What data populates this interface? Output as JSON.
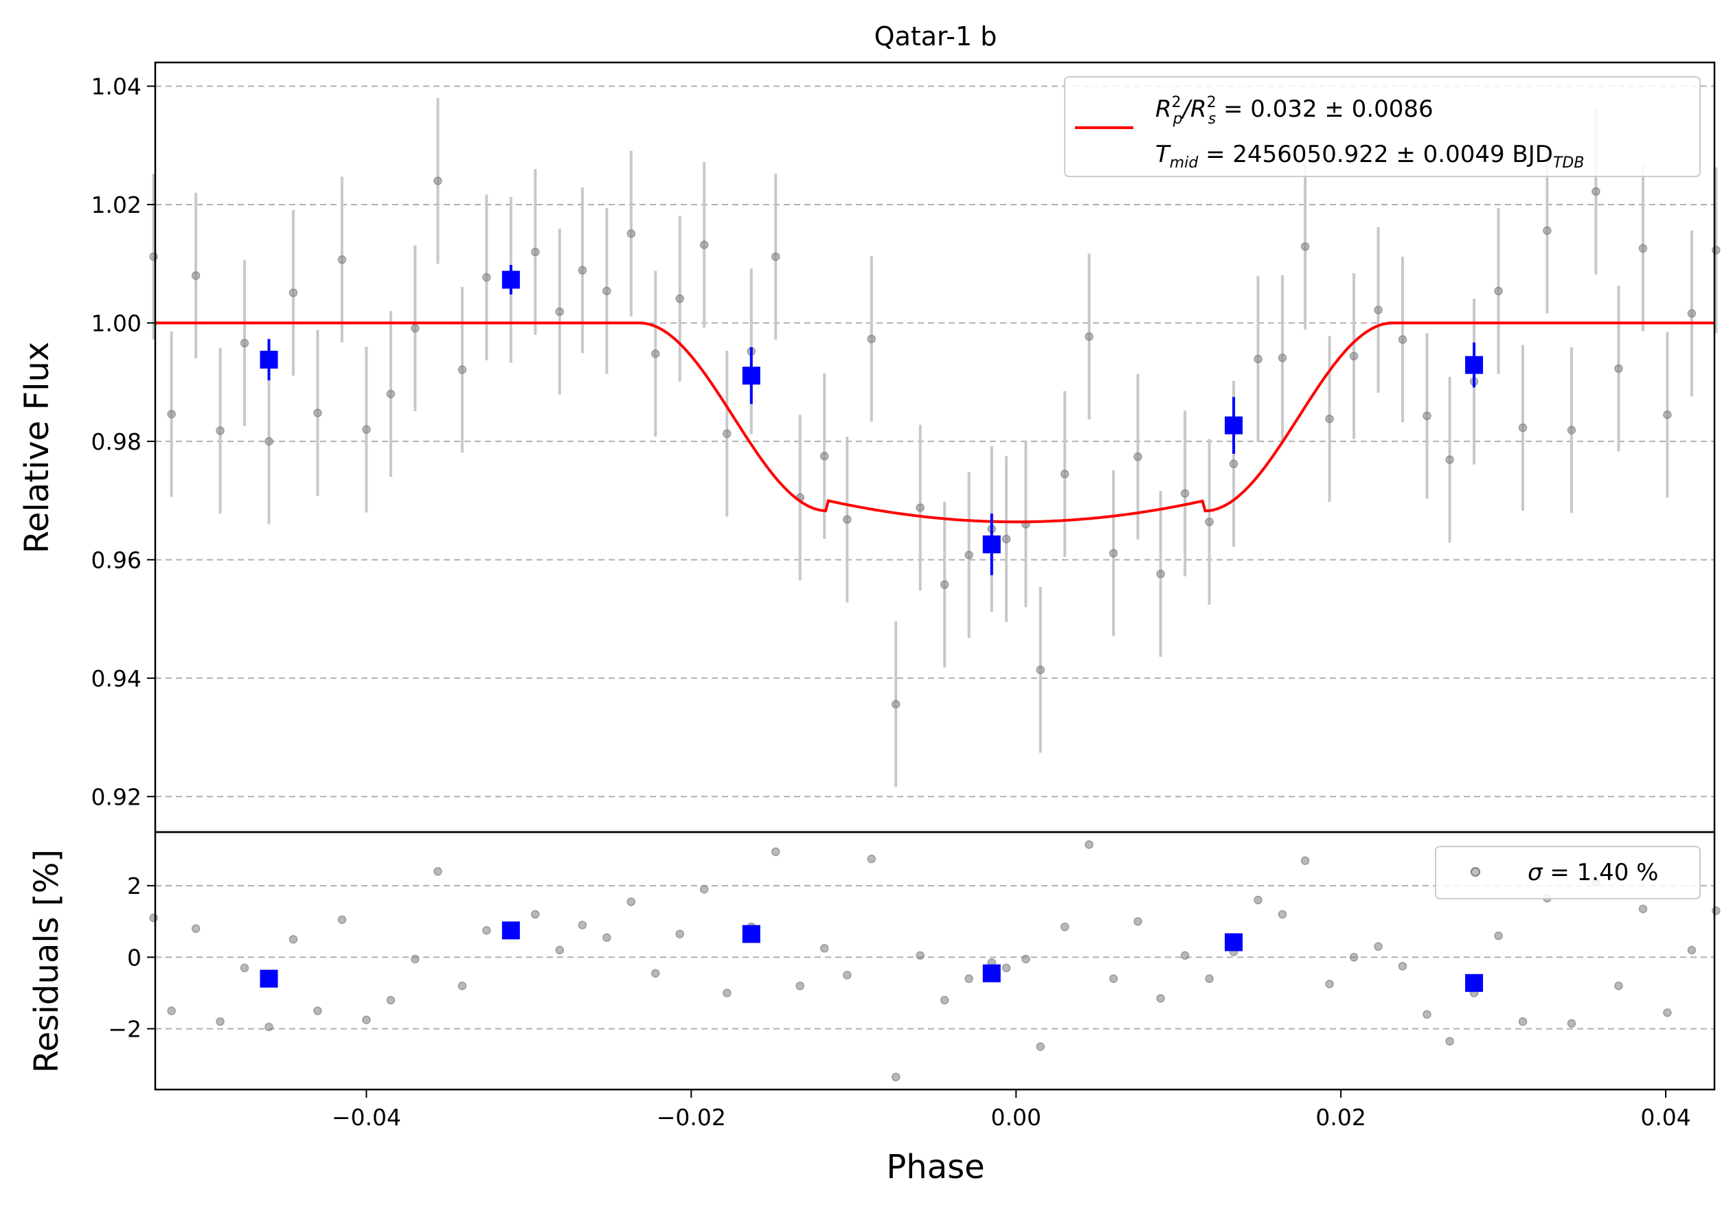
{
  "chart_data": [
    {
      "type": "scatter",
      "title": "Qatar-1 b",
      "xlabel": "",
      "ylabel": "Relative Flux",
      "xlim": [
        -0.053,
        0.043
      ],
      "ylim": [
        0.914,
        1.044
      ],
      "grid": "y-dashed",
      "yticks": [
        0.92,
        0.94,
        0.96,
        0.98,
        1.0,
        1.02,
        1.04
      ],
      "ytick_labels": [
        "0.92",
        "0.94",
        "0.96",
        "0.98",
        "1.00",
        "1.02",
        "1.04"
      ],
      "legend": {
        "placement": "top-right",
        "line1": {
          "main": "R",
          "sup1": "2",
          "sub1": "p",
          "slash": "/R",
          "sup2": "2",
          "sub2": "s",
          "rest": " = 0.032 ± 0.0086"
        },
        "line2": {
          "main": "T",
          "sub1": "mid",
          "rest": " = 2456050.922 ± 0.0049 BJD",
          "sub2": "TDB"
        }
      },
      "colors": {
        "raw": "#808080",
        "raw_err": "#c8c8c8",
        "binned": "#0000ff",
        "model": "#ff0000"
      },
      "raw_points": [
        {
          "x": -0.0531,
          "y": 1.0112,
          "e": 0.014
        },
        {
          "x": -0.052,
          "y": 0.9846,
          "e": 0.014
        },
        {
          "x": -0.0505,
          "y": 1.008,
          "e": 0.014
        },
        {
          "x": -0.049,
          "y": 0.9818,
          "e": 0.014
        },
        {
          "x": -0.0475,
          "y": 0.9966,
          "e": 0.014
        },
        {
          "x": -0.046,
          "y": 0.98,
          "e": 0.014
        },
        {
          "x": -0.0445,
          "y": 1.0051,
          "e": 0.014
        },
        {
          "x": -0.043,
          "y": 0.9848,
          "e": 0.014
        },
        {
          "x": -0.0415,
          "y": 1.0107,
          "e": 0.014
        },
        {
          "x": -0.04,
          "y": 0.982,
          "e": 0.014
        },
        {
          "x": -0.0385,
          "y": 0.988,
          "e": 0.014
        },
        {
          "x": -0.037,
          "y": 0.9991,
          "e": 0.014
        },
        {
          "x": -0.0356,
          "y": 1.024,
          "e": 0.014
        },
        {
          "x": -0.0341,
          "y": 0.9921,
          "e": 0.014
        },
        {
          "x": -0.0326,
          "y": 1.0077,
          "e": 0.014
        },
        {
          "x": -0.0311,
          "y": 1.0073,
          "e": 0.014
        },
        {
          "x": -0.0296,
          "y": 1.012,
          "e": 0.014
        },
        {
          "x": -0.0281,
          "y": 1.0019,
          "e": 0.014
        },
        {
          "x": -0.0267,
          "y": 1.0089,
          "e": 0.014
        },
        {
          "x": -0.0252,
          "y": 1.0054,
          "e": 0.014
        },
        {
          "x": -0.0237,
          "y": 1.0151,
          "e": 0.014
        },
        {
          "x": -0.0222,
          "y": 0.9948,
          "e": 0.014
        },
        {
          "x": -0.0207,
          "y": 1.0041,
          "e": 0.014
        },
        {
          "x": -0.0192,
          "y": 1.0132,
          "e": 0.014
        },
        {
          "x": -0.0178,
          "y": 0.9813,
          "e": 0.014
        },
        {
          "x": -0.0163,
          "y": 0.9952,
          "e": 0.014
        },
        {
          "x": -0.0148,
          "y": 1.0112,
          "e": 0.014
        },
        {
          "x": -0.0133,
          "y": 0.9705,
          "e": 0.014
        },
        {
          "x": -0.0118,
          "y": 0.9775,
          "e": 0.014
        },
        {
          "x": -0.0104,
          "y": 0.9668,
          "e": 0.014
        },
        {
          "x": -0.0089,
          "y": 0.9973,
          "e": 0.014
        },
        {
          "x": -0.0074,
          "y": 0.9356,
          "e": 0.014
        },
        {
          "x": -0.0059,
          "y": 0.9688,
          "e": 0.014
        },
        {
          "x": -0.0044,
          "y": 0.9558,
          "e": 0.014
        },
        {
          "x": -0.0029,
          "y": 0.9608,
          "e": 0.014
        },
        {
          "x": -0.0015,
          "y": 0.9652,
          "e": 0.014
        },
        {
          "x": -0.0006,
          "y": 0.9635,
          "e": 0.014
        },
        {
          "x": 0.0006,
          "y": 0.966,
          "e": 0.014
        },
        {
          "x": 0.0015,
          "y": 0.9414,
          "e": 0.014
        },
        {
          "x": 0.003,
          "y": 0.9745,
          "e": 0.014
        },
        {
          "x": 0.0045,
          "y": 0.9977,
          "e": 0.014
        },
        {
          "x": 0.006,
          "y": 0.9611,
          "e": 0.014
        },
        {
          "x": 0.0075,
          "y": 0.9774,
          "e": 0.014
        },
        {
          "x": 0.0089,
          "y": 0.9576,
          "e": 0.014
        },
        {
          "x": 0.0104,
          "y": 0.9712,
          "e": 0.014
        },
        {
          "x": 0.0119,
          "y": 0.9664,
          "e": 0.014
        },
        {
          "x": 0.0134,
          "y": 0.9762,
          "e": 0.014
        },
        {
          "x": 0.0149,
          "y": 0.9939,
          "e": 0.014
        },
        {
          "x": 0.0164,
          "y": 0.9941,
          "e": 0.014
        },
        {
          "x": 0.0178,
          "y": 1.0129,
          "e": 0.014
        },
        {
          "x": 0.0193,
          "y": 0.9838,
          "e": 0.014
        },
        {
          "x": 0.0208,
          "y": 0.9944,
          "e": 0.014
        },
        {
          "x": 0.0223,
          "y": 1.0022,
          "e": 0.014
        },
        {
          "x": 0.0238,
          "y": 0.9972,
          "e": 0.014
        },
        {
          "x": 0.0253,
          "y": 0.9843,
          "e": 0.014
        },
        {
          "x": 0.0267,
          "y": 0.9769,
          "e": 0.014
        },
        {
          "x": 0.0282,
          "y": 0.9901,
          "e": 0.014
        },
        {
          "x": 0.0297,
          "y": 1.0054,
          "e": 0.014
        },
        {
          "x": 0.0312,
          "y": 0.9823,
          "e": 0.014
        },
        {
          "x": 0.0327,
          "y": 1.0156,
          "e": 0.014
        },
        {
          "x": 0.0342,
          "y": 0.9819,
          "e": 0.014
        },
        {
          "x": 0.0357,
          "y": 1.0222,
          "e": 0.014
        },
        {
          "x": 0.0371,
          "y": 0.9923,
          "e": 0.014
        },
        {
          "x": 0.0386,
          "y": 1.0126,
          "e": 0.014
        },
        {
          "x": 0.0401,
          "y": 0.9845,
          "e": 0.014
        },
        {
          "x": 0.0416,
          "y": 1.0016,
          "e": 0.014
        },
        {
          "x": 0.0431,
          "y": 1.0123,
          "e": 0.014
        }
      ],
      "binned_points": [
        {
          "x": -0.046,
          "y": 0.9938,
          "e": 0.0035
        },
        {
          "x": -0.0311,
          "y": 1.0073,
          "e": 0.0025
        },
        {
          "x": -0.0163,
          "y": 0.9911,
          "e": 0.0048
        },
        {
          "x": -0.0015,
          "y": 0.9626,
          "e": 0.0052
        },
        {
          "x": 0.0134,
          "y": 0.9827,
          "e": 0.0048
        },
        {
          "x": 0.0282,
          "y": 0.9929,
          "e": 0.0038
        }
      ],
      "model_params": {
        "depth": 0.0336,
        "t_full_start": 0.0116,
        "t_ingress_start": 0.0232
      }
    },
    {
      "type": "scatter",
      "title": "",
      "xlabel": "Phase",
      "ylabel": "Residuals [%]",
      "xlim": [
        -0.053,
        0.043
      ],
      "ylim": [
        -3.7,
        3.5
      ],
      "grid": "y-dashed",
      "yticks": [
        -2,
        0,
        2
      ],
      "ytick_labels": [
        "−2",
        "0",
        "2"
      ],
      "xticks": [
        -0.04,
        -0.02,
        0.0,
        0.02,
        0.04
      ],
      "xtick_labels": [
        "−0.04",
        "−0.02",
        "0.00",
        "0.02",
        "0.04"
      ],
      "legend": {
        "placement": "top-right",
        "sigma_symbol": "σ",
        "sigma_text": " = 1.40 %"
      },
      "raw_points": [
        {
          "x": -0.0531,
          "y": 1.1
        },
        {
          "x": -0.052,
          "y": -1.5
        },
        {
          "x": -0.0505,
          "y": 0.8
        },
        {
          "x": -0.049,
          "y": -1.8
        },
        {
          "x": -0.0475,
          "y": -0.3
        },
        {
          "x": -0.046,
          "y": -1.95
        },
        {
          "x": -0.0445,
          "y": 0.5
        },
        {
          "x": -0.043,
          "y": -1.5
        },
        {
          "x": -0.0415,
          "y": 1.05
        },
        {
          "x": -0.04,
          "y": -1.75
        },
        {
          "x": -0.0385,
          "y": -1.2
        },
        {
          "x": -0.037,
          "y": -0.05
        },
        {
          "x": -0.0356,
          "y": 2.4
        },
        {
          "x": -0.0341,
          "y": -0.8
        },
        {
          "x": -0.0326,
          "y": 0.75
        },
        {
          "x": -0.0311,
          "y": 0.75
        },
        {
          "x": -0.0296,
          "y": 1.2
        },
        {
          "x": -0.0281,
          "y": 0.2
        },
        {
          "x": -0.0267,
          "y": 0.9
        },
        {
          "x": -0.0252,
          "y": 0.55
        },
        {
          "x": -0.0237,
          "y": 1.55
        },
        {
          "x": -0.0222,
          "y": -0.45
        },
        {
          "x": -0.0207,
          "y": 0.65
        },
        {
          "x": -0.0192,
          "y": 1.9
        },
        {
          "x": -0.0178,
          "y": -1.0
        },
        {
          "x": -0.0163,
          "y": 0.85
        },
        {
          "x": -0.0148,
          "y": 2.95
        },
        {
          "x": -0.0133,
          "y": -0.8
        },
        {
          "x": -0.0118,
          "y": 0.25
        },
        {
          "x": -0.0104,
          "y": -0.5
        },
        {
          "x": -0.0089,
          "y": 2.75
        },
        {
          "x": -0.0074,
          "y": -3.35
        },
        {
          "x": -0.0059,
          "y": 0.05
        },
        {
          "x": -0.0044,
          "y": -1.2
        },
        {
          "x": -0.0029,
          "y": -0.6
        },
        {
          "x": -0.0015,
          "y": -0.15
        },
        {
          "x": -0.0006,
          "y": -0.3
        },
        {
          "x": 0.0006,
          "y": -0.05
        },
        {
          "x": 0.0015,
          "y": -2.5
        },
        {
          "x": 0.003,
          "y": 0.85
        },
        {
          "x": 0.0045,
          "y": 3.15
        },
        {
          "x": 0.006,
          "y": -0.6
        },
        {
          "x": 0.0075,
          "y": 1.0
        },
        {
          "x": 0.0089,
          "y": -1.15
        },
        {
          "x": 0.0104,
          "y": 0.05
        },
        {
          "x": 0.0119,
          "y": -0.6
        },
        {
          "x": 0.0134,
          "y": 0.15
        },
        {
          "x": 0.0149,
          "y": 1.6
        },
        {
          "x": 0.0164,
          "y": 1.2
        },
        {
          "x": 0.0178,
          "y": 2.7
        },
        {
          "x": 0.0193,
          "y": -0.75
        },
        {
          "x": 0.0208,
          "y": 0.0
        },
        {
          "x": 0.0223,
          "y": 0.3
        },
        {
          "x": 0.0238,
          "y": -0.25
        },
        {
          "x": 0.0253,
          "y": -1.6
        },
        {
          "x": 0.0267,
          "y": -2.35
        },
        {
          "x": 0.0282,
          "y": -1.0
        },
        {
          "x": 0.0297,
          "y": 0.6
        },
        {
          "x": 0.0312,
          "y": -1.8
        },
        {
          "x": 0.0327,
          "y": 1.65
        },
        {
          "x": 0.0342,
          "y": -1.85
        },
        {
          "x": 0.0357,
          "y": 2.1
        },
        {
          "x": 0.0371,
          "y": -0.8
        },
        {
          "x": 0.0386,
          "y": 1.35
        },
        {
          "x": 0.0401,
          "y": -1.55
        },
        {
          "x": 0.0416,
          "y": 0.2
        },
        {
          "x": 0.0431,
          "y": 1.3
        }
      ],
      "binned_points": [
        {
          "x": -0.046,
          "y": -0.6
        },
        {
          "x": -0.0311,
          "y": 0.75
        },
        {
          "x": -0.0163,
          "y": 0.65
        },
        {
          "x": -0.0015,
          "y": -0.45
        },
        {
          "x": 0.0134,
          "y": 0.42
        },
        {
          "x": 0.0282,
          "y": -0.72
        }
      ]
    }
  ]
}
